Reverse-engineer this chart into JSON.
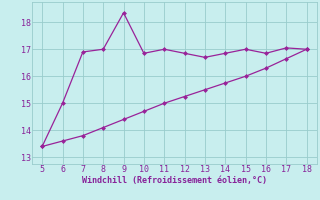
{
  "xlabel": "Windchill (Refroidissement éolien,°C)",
  "line1_x": [
    5,
    6,
    7,
    8,
    9,
    10,
    11,
    12,
    13,
    14,
    15,
    16,
    17,
    18
  ],
  "line1_y": [
    13.4,
    15.0,
    16.9,
    17.0,
    18.35,
    16.85,
    17.0,
    16.85,
    16.7,
    16.85,
    17.0,
    16.85,
    17.05,
    17.0
  ],
  "line2_x": [
    5,
    6,
    7,
    8,
    9,
    10,
    11,
    12,
    13,
    14,
    15,
    16,
    17,
    18
  ],
  "line2_y": [
    13.4,
    13.6,
    13.8,
    14.1,
    14.4,
    14.7,
    15.0,
    15.25,
    15.5,
    15.75,
    16.0,
    16.3,
    16.65,
    17.0
  ],
  "line_color": "#992299",
  "bg_color": "#c8eeee",
  "grid_color": "#99cccc",
  "axis_color": "#9933aa",
  "xlim": [
    4.5,
    18.5
  ],
  "ylim": [
    12.75,
    18.75
  ],
  "xticks": [
    5,
    6,
    7,
    8,
    9,
    10,
    11,
    12,
    13,
    14,
    15,
    16,
    17,
    18
  ],
  "yticks": [
    13,
    14,
    15,
    16,
    17,
    18
  ],
  "tick_color": "#882299",
  "label_color": "#882299",
  "marker": "D",
  "markersize": 2.5,
  "linewidth": 0.9
}
